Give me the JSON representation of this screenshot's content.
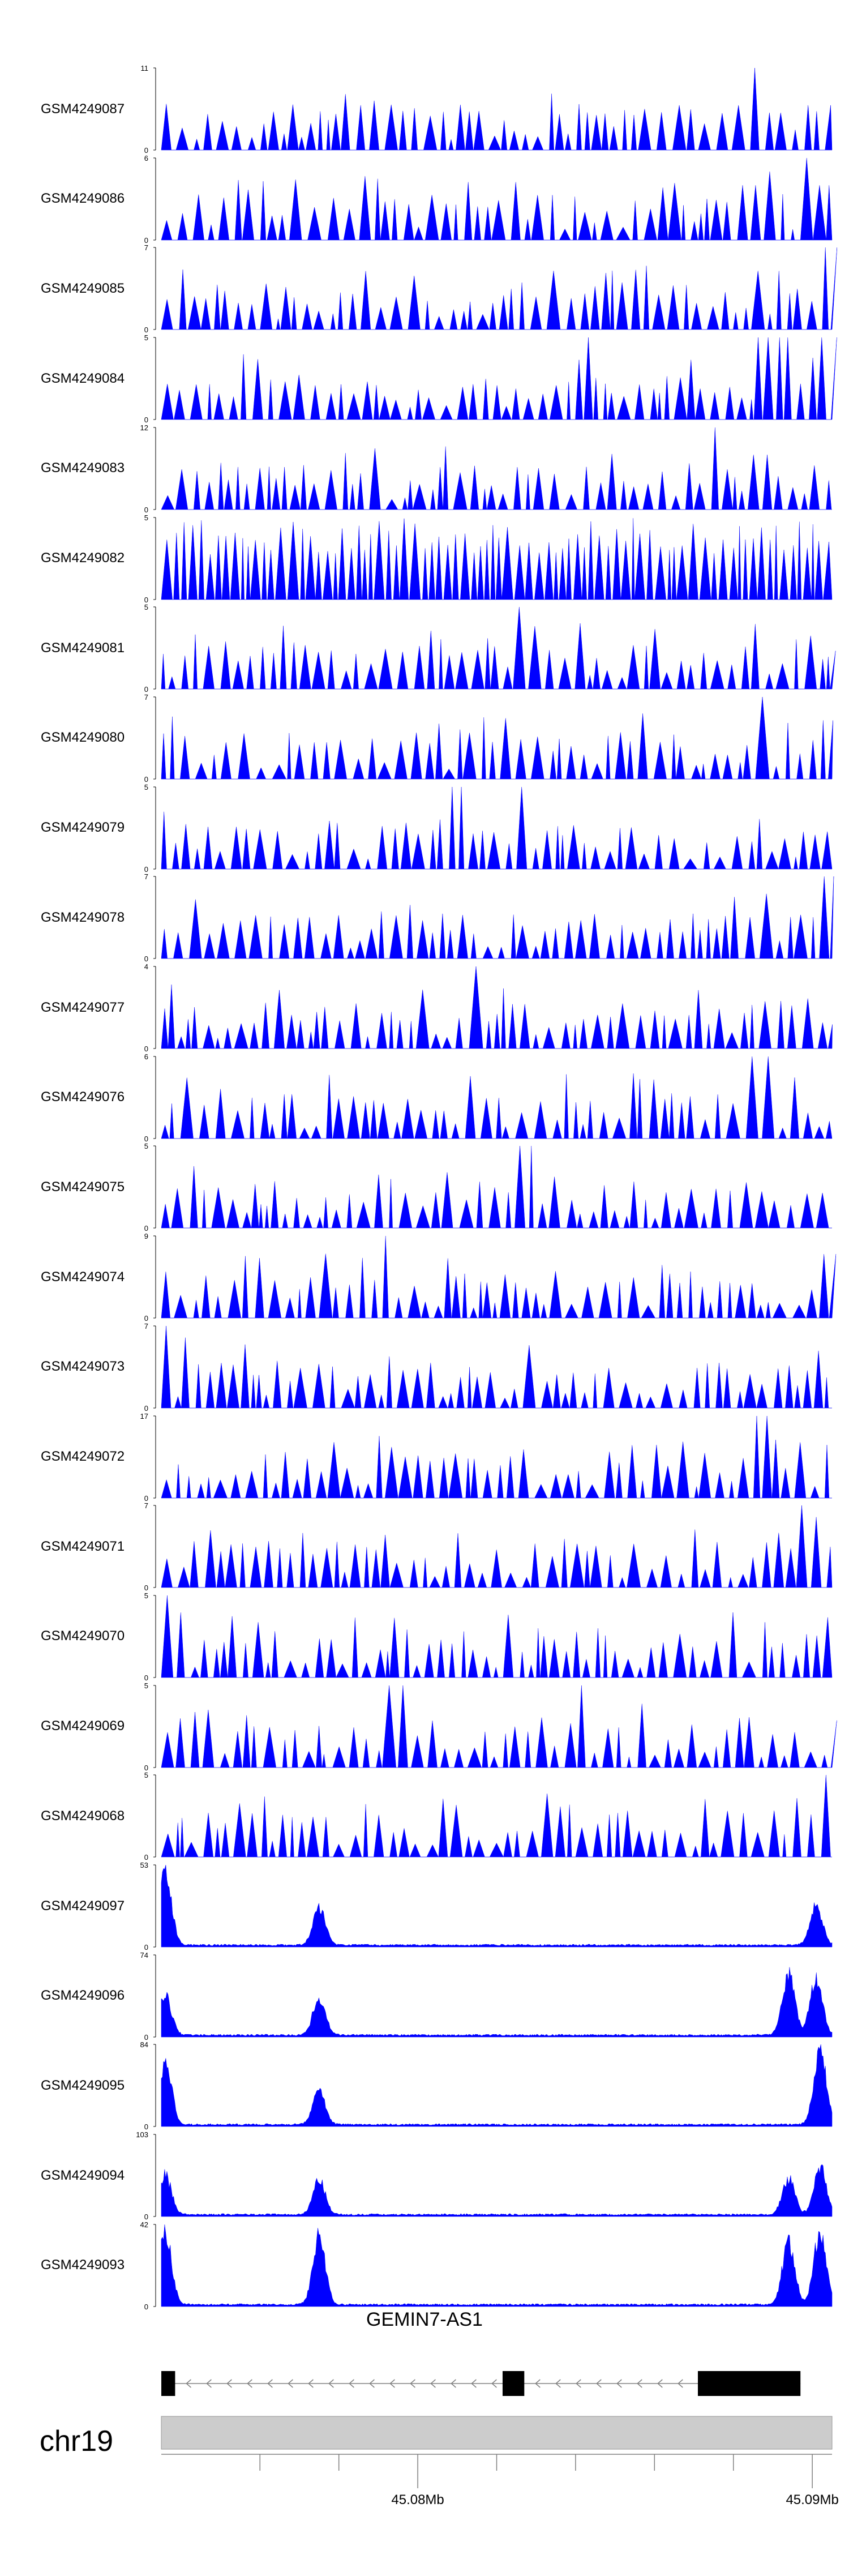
{
  "chart_data": {
    "type": "area",
    "title": "",
    "xlabel": "",
    "ylabel": "",
    "color": "#0000FF",
    "genomic_range_mb": [
      45.0735,
      45.0905
    ],
    "tracks": [
      {
        "name": "GSM4249087",
        "ymax": 11,
        "ymin": 0,
        "shape": "sparse",
        "peaks": [
          [
            45.0887,
            11
          ],
          [
            45.0882,
            6
          ],
          [
            45.0891,
            5
          ],
          [
            45.0898,
            6
          ],
          [
            45.0903,
            6
          ]
        ]
      },
      {
        "name": "GSM4249086",
        "ymax": 6,
        "ymin": 0,
        "shape": "sparse",
        "peaks": [
          [
            45.0887,
            6
          ],
          [
            45.0884,
            4
          ],
          [
            45.0889,
            5
          ],
          [
            45.09,
            6
          ],
          [
            45.0904,
            4
          ]
        ]
      },
      {
        "name": "GSM4249085",
        "ymax": 7,
        "ymin": 0,
        "shape": "sparse",
        "peaks": [
          [
            45.0835,
            5
          ],
          [
            45.0888,
            5
          ],
          [
            45.0904,
            7
          ]
        ]
      },
      {
        "name": "GSM4249084",
        "ymax": 5,
        "ymin": 0,
        "shape": "sparse",
        "peaks": [
          [
            45.0843,
            5
          ],
          [
            45.0887,
            5
          ],
          [
            45.0893,
            5
          ],
          [
            45.0904,
            5
          ]
        ]
      },
      {
        "name": "GSM4249083",
        "ymax": 12,
        "ymin": 0,
        "shape": "sparse",
        "peaks": [
          [
            45.0875,
            12
          ],
          [
            45.0887,
            8
          ]
        ]
      },
      {
        "name": "GSM4249082",
        "ymax": 5,
        "ymin": 0,
        "shape": "dense",
        "peaks": []
      },
      {
        "name": "GSM4249081",
        "ymax": 5,
        "ymin": 0,
        "shape": "sparse",
        "peaks": [
          [
            45.0826,
            5
          ],
          [
            45.0842,
            4
          ]
        ]
      },
      {
        "name": "GSM4249080",
        "ymax": 7,
        "ymin": 0,
        "shape": "sparse",
        "peaks": [
          [
            45.0887,
            7
          ],
          [
            45.0903,
            5
          ]
        ]
      },
      {
        "name": "GSM4249079",
        "ymax": 5,
        "ymin": 0,
        "shape": "sparse",
        "peaks": [
          [
            45.081,
            5
          ],
          [
            45.0825,
            5
          ]
        ]
      },
      {
        "name": "GSM4249078",
        "ymax": 7,
        "ymin": 0,
        "shape": "sparse",
        "peaks": [
          [
            45.0904,
            7
          ]
        ]
      },
      {
        "name": "GSM4249077",
        "ymax": 4,
        "ymin": 0,
        "shape": "sparse",
        "peaks": [
          [
            45.0815,
            4
          ]
        ]
      },
      {
        "name": "GSM4249076",
        "ymax": 6,
        "ymin": 0,
        "shape": "sparse",
        "peaks": [
          [
            45.0887,
            6
          ]
        ]
      },
      {
        "name": "GSM4249075",
        "ymax": 5,
        "ymin": 0,
        "shape": "sparse",
        "peaks": [
          [
            45.0828,
            5
          ]
        ]
      },
      {
        "name": "GSM4249074",
        "ymax": 9,
        "ymin": 0,
        "shape": "sparse",
        "peaks": [
          [
            45.0792,
            9
          ],
          [
            45.0904,
            7
          ]
        ]
      },
      {
        "name": "GSM4249073",
        "ymax": 7,
        "ymin": 0,
        "shape": "sparse",
        "peaks": [
          [
            45.0737,
            7
          ],
          [
            45.0741,
            6
          ]
        ]
      },
      {
        "name": "GSM4249072",
        "ymax": 17,
        "ymin": 0,
        "shape": "sparse",
        "peaks": [
          [
            45.0887,
            17
          ],
          [
            45.0904,
            11
          ]
        ]
      },
      {
        "name": "GSM4249071",
        "ymax": 7,
        "ymin": 0,
        "shape": "sparse",
        "peaks": [
          [
            45.0898,
            7
          ],
          [
            45.0902,
            6
          ]
        ]
      },
      {
        "name": "GSM4249070",
        "ymax": 5,
        "ymin": 0,
        "shape": "sparse",
        "peaks": [
          [
            45.0736,
            5
          ]
        ]
      },
      {
        "name": "GSM4249069",
        "ymax": 5,
        "ymin": 0,
        "shape": "sparse",
        "peaks": [
          [
            45.0795,
            5
          ],
          [
            45.0842,
            5
          ]
        ]
      },
      {
        "name": "GSM4249068",
        "ymax": 5,
        "ymin": 0,
        "shape": "sparse",
        "peaks": [
          [
            45.0903,
            5
          ]
        ]
      },
      {
        "name": "GSM4249097",
        "ymax": 53,
        "ymin": 0,
        "shape": "chip",
        "peaks": [
          [
            45.0736,
            53
          ],
          [
            45.0775,
            27
          ],
          [
            45.0901,
            28
          ]
        ]
      },
      {
        "name": "GSM4249096",
        "ymax": 74,
        "ymin": 0,
        "shape": "chip",
        "peaks": [
          [
            45.0736,
            40
          ],
          [
            45.0775,
            38
          ],
          [
            45.0894,
            60
          ],
          [
            45.0901,
            56
          ]
        ]
      },
      {
        "name": "GSM4249095",
        "ymax": 84,
        "ymin": 0,
        "shape": "chip",
        "peaks": [
          [
            45.0736,
            72
          ],
          [
            45.0775,
            37
          ],
          [
            45.0902,
            84
          ]
        ]
      },
      {
        "name": "GSM4249094",
        "ymax": 103,
        "ymin": 0,
        "shape": "chip",
        "peaks": [
          [
            45.0736,
            55
          ],
          [
            45.0775,
            48
          ],
          [
            45.0894,
            50
          ],
          [
            45.0902,
            66
          ]
        ]
      },
      {
        "name": "GSM4249093",
        "ymax": 42,
        "ymin": 0,
        "shape": "chip",
        "peaks": [
          [
            45.0736,
            42
          ],
          [
            45.0775,
            38
          ],
          [
            45.0894,
            35
          ],
          [
            45.0902,
            42
          ]
        ]
      }
    ],
    "gene": {
      "name": "GEMIN7-AS1",
      "strand": "-",
      "exons": [
        [
          45.0735,
          45.07385
        ],
        [
          45.08215,
          45.0827
        ],
        [
          45.0871,
          45.0897
        ]
      ]
    },
    "chromosome": {
      "label": "chr19",
      "major_ticks": [
        {
          "value": 45.08,
          "label": "45.08Mb"
        },
        {
          "value": 45.09,
          "label": "45.09Mb"
        }
      ],
      "minor_ticks": [
        45.076,
        45.078,
        45.082,
        45.084,
        45.086,
        45.088
      ]
    }
  }
}
